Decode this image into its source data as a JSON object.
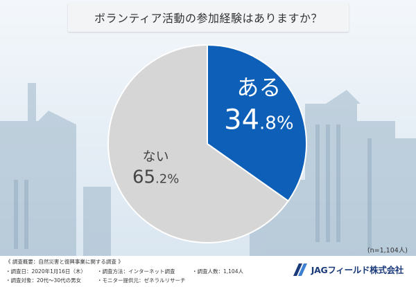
{
  "title": "ボランティア活動の参加経験はありますか？",
  "chart_data": {
    "type": "pie",
    "slices": [
      {
        "label": "ある",
        "value": 34.8,
        "value_text": "34",
        "decimal_text": ".8%",
        "color": "#0d5fb8"
      },
      {
        "label": "ない",
        "value": 65.2,
        "value_text": "65",
        "decimal_text": ".2%",
        "color": "#d6d6d6"
      }
    ]
  },
  "sample_size": "(n=1,104人)",
  "footer": {
    "summary": "《 調査概要：自然災害と復興事業に関する調査 》",
    "date": "・調査日：2020年1月16日（木）",
    "method": "・調査方法：インターネット調査",
    "count": "・調査人数：1,104人",
    "target": "・調査対象：20代～30代の男女",
    "provider": "・モニター提供元：ゼネラルリサーチ"
  },
  "logo": {
    "text": "JAGフィールド株式会社",
    "color": "#1a3a7a"
  }
}
